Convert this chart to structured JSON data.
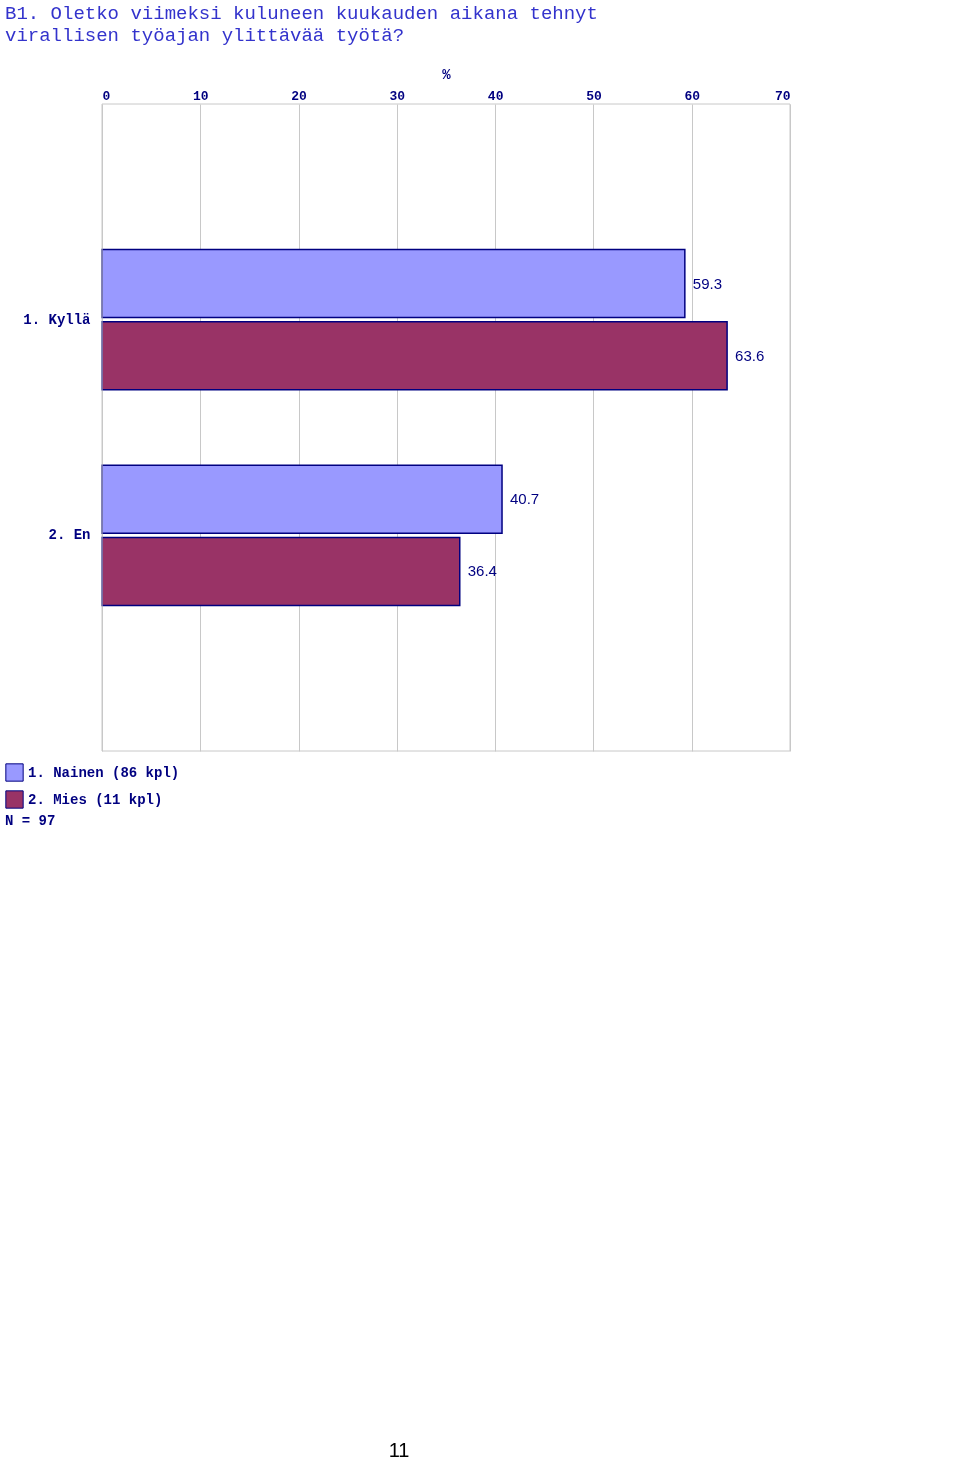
{
  "chart_data": {
    "type": "bar",
    "orientation": "horizontal",
    "title": [
      "B1. Oletko viimeksi kuluneen kuukauden aikana tehnyt",
      "virallisen työajan ylittävää työtä?"
    ],
    "xlabel": "%",
    "categories": [
      "1. Kyllä",
      "2. En"
    ],
    "series": [
      {
        "name": "1. Nainen  (86 kpl)",
        "color": "#9999ff",
        "values": [
          59.3,
          40.7
        ]
      },
      {
        "name": "2. Mies  (11 kpl)",
        "color": "#993366",
        "values": [
          63.6,
          36.4
        ]
      }
    ],
    "xlim": [
      0,
      70
    ],
    "xticks": [
      0,
      10,
      20,
      30,
      40,
      50,
      60,
      70
    ],
    "grid": "x",
    "legend": "bottom left",
    "data_labels": true,
    "annotations": [
      "N = 97",
      "11"
    ]
  }
}
